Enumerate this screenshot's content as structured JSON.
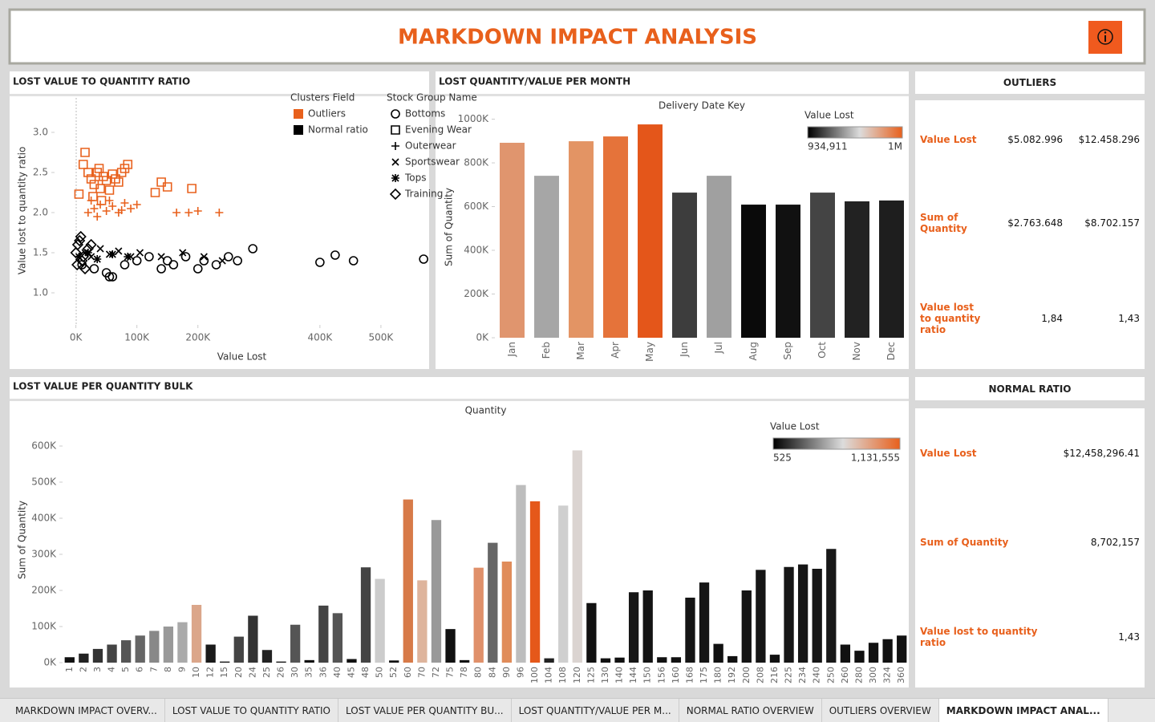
{
  "header": {
    "title": "MARKDOWN IMPACT ANALYSIS"
  },
  "chart_data": [
    {
      "type": "scatter",
      "title": "LOST VALUE TO QUANTITY RATIO",
      "xlabel": "Value Lost",
      "ylabel": "Value lost to quantity ratio",
      "xlim": [
        -35000,
        579000
      ],
      "xticks": [
        {
          "value": 0,
          "label": "0K"
        },
        {
          "value": 100000,
          "label": "100K"
        },
        {
          "value": 200000,
          "label": "200K"
        },
        {
          "value": 400000,
          "label": "400K"
        },
        {
          "value": 500000,
          "label": "500K"
        }
      ],
      "ylim": [
        0.6,
        3.45
      ],
      "yticks": [
        {
          "value": 1,
          "label": "1.0"
        },
        1.5,
        {
          "value": 2,
          "label": "2.0"
        },
        2.5,
        {
          "value": 3,
          "label": "3.0"
        }
      ],
      "cluster_legend": {
        "title": "Clusters Field",
        "items": [
          {
            "name": "Outliers",
            "color": "#e8601c"
          },
          {
            "name": "Normal ratio",
            "color": "#000000"
          }
        ]
      },
      "shape_legend": {
        "title": "Stock Group Name",
        "items": [
          {
            "name": "Bottoms",
            "shape": "circle"
          },
          {
            "name": "Evening Wear",
            "shape": "square"
          },
          {
            "name": "Outerwear",
            "shape": "plus"
          },
          {
            "name": "Sportswear",
            "shape": "cross"
          },
          {
            "name": "Tops",
            "shape": "asterisk"
          },
          {
            "name": "Training",
            "shape": "diamond"
          }
        ]
      },
      "series": [
        {
          "name": "Evening Wear",
          "cluster": "Outliers",
          "x": [
            5000,
            15000,
            20000,
            25000,
            30000,
            35000,
            40000,
            45000,
            50000,
            55000,
            60000,
            70000,
            80000,
            85000,
            12000,
            28000,
            38000,
            65000,
            130000,
            140000,
            150000,
            190000,
            42000,
            75000
          ],
          "y": [
            2.23,
            2.75,
            2.5,
            2.42,
            2.35,
            2.5,
            2.3,
            2.45,
            2.4,
            2.28,
            2.48,
            2.38,
            2.55,
            2.6,
            2.6,
            2.2,
            2.55,
            2.42,
            2.25,
            2.38,
            2.32,
            2.3,
            2.15,
            2.5
          ]
        },
        {
          "name": "Outerwear",
          "cluster": "Outliers",
          "x": [
            20000,
            30000,
            40000,
            50000,
            60000,
            70000,
            80000,
            90000,
            100000,
            35000,
            55000,
            75000,
            165000,
            185000,
            200000,
            235000,
            25000
          ],
          "y": [
            2.0,
            2.05,
            2.1,
            2.02,
            2.08,
            2.0,
            2.12,
            2.05,
            2.1,
            1.95,
            2.15,
            2.03,
            2.0,
            2.0,
            2.02,
            2.0,
            2.15
          ]
        },
        {
          "name": "Bottoms",
          "cluster": "Normal ratio",
          "x": [
            10000,
            30000,
            50000,
            60000,
            80000,
            100000,
            120000,
            140000,
            150000,
            160000,
            180000,
            200000,
            210000,
            230000,
            250000,
            265000,
            290000,
            400000,
            425000,
            455000,
            570000,
            55000
          ],
          "y": [
            1.35,
            1.3,
            1.25,
            1.2,
            1.35,
            1.4,
            1.45,
            1.3,
            1.4,
            1.35,
            1.45,
            1.3,
            1.4,
            1.35,
            1.45,
            1.4,
            1.55,
            1.38,
            1.47,
            1.4,
            1.42,
            1.2
          ]
        },
        {
          "name": "Sportswear",
          "cluster": "Normal ratio",
          "x": [
            15000,
            25000,
            40000,
            55000,
            70000,
            90000,
            105000,
            140000,
            175000,
            210000,
            240000
          ],
          "y": [
            1.5,
            1.45,
            1.55,
            1.48,
            1.52,
            1.45,
            1.5,
            1.45,
            1.5,
            1.45,
            1.4
          ]
        },
        {
          "name": "Tops",
          "cluster": "Normal ratio",
          "x": [
            5000,
            20000,
            35000,
            60000,
            85000
          ],
          "y": [
            1.45,
            1.5,
            1.42,
            1.48,
            1.45
          ]
        },
        {
          "name": "Training",
          "cluster": "Normal ratio",
          "x": [
            0,
            3000,
            6000,
            10000,
            15000,
            20000,
            8000,
            2000,
            25000,
            12000
          ],
          "y": [
            1.5,
            1.6,
            1.65,
            1.4,
            1.3,
            1.55,
            1.7,
            1.35,
            1.6,
            1.45
          ]
        }
      ]
    },
    {
      "type": "bar",
      "title": "LOST QUANTITY/VALUE PER MONTH",
      "xlabel": "Delivery Date Key",
      "ylabel": "Sum of Quantity",
      "categories": [
        "Jan",
        "Feb",
        "Mar",
        "Apr",
        "May",
        "Jun",
        "Jul",
        "Aug",
        "Sep",
        "Oct",
        "Nov",
        "Dec"
      ],
      "values": [
        892000,
        741000,
        899000,
        921000,
        976000,
        664000,
        741000,
        609000,
        609000,
        664000,
        624000,
        628000
      ],
      "colors": [
        "#e0956e",
        "#a6a6a6",
        "#e39464",
        "#e5733a",
        "#e4561a",
        "#3d3d3d",
        "#a0a0a0",
        "#0a0a0a",
        "#111111",
        "#444444",
        "#222222",
        "#1e1e1e"
      ],
      "ylim": [
        0,
        1013000
      ],
      "yticks": [
        {
          "value": 0,
          "label": "0K"
        },
        {
          "value": 200000,
          "label": "200K"
        },
        {
          "value": 400000,
          "label": "400K"
        },
        {
          "value": 600000,
          "label": "600K"
        },
        {
          "value": 800000,
          "label": "800K"
        },
        {
          "value": 1000000,
          "label": "1000K"
        }
      ],
      "legend": {
        "title": "Value Lost",
        "min_label": "934,911",
        "max_label": "1M"
      }
    },
    {
      "type": "bar",
      "title": "LOST VALUE PER QUANTITY BULK",
      "xlabel": "Quantity",
      "ylabel": "Sum of Quantity",
      "categories": [
        "1",
        "2",
        "3",
        "4",
        "5",
        "6",
        "7",
        "8",
        "9",
        "10",
        "12",
        "15",
        "20",
        "24",
        "25",
        "26",
        "30",
        "35",
        "36",
        "40",
        "45",
        "48",
        "50",
        "52",
        "60",
        "70",
        "72",
        "75",
        "78",
        "80",
        "84",
        "90",
        "96",
        "100",
        "104",
        "108",
        "120",
        "125",
        "130",
        "140",
        "144",
        "150",
        "156",
        "160",
        "168",
        "175",
        "180",
        "192",
        "200",
        "208",
        "216",
        "225",
        "234",
        "240",
        "250",
        "260",
        "280",
        "300",
        "324",
        "360"
      ],
      "values": [
        15000,
        25000,
        38000,
        50000,
        62000,
        75000,
        88000,
        100000,
        112000,
        160000,
        50000,
        3000,
        72000,
        130000,
        35000,
        3000,
        105000,
        7000,
        158000,
        137000,
        10000,
        264000,
        232000,
        6000,
        452000,
        228000,
        395000,
        93000,
        7000,
        263000,
        332000,
        280000,
        492000,
        447000,
        12000,
        435000,
        588000,
        165000,
        12000,
        14000,
        195000,
        200000,
        15000,
        15000,
        180000,
        222000,
        52000,
        18000,
        200000,
        257000,
        22000,
        265000,
        272000,
        260000,
        315000,
        50000,
        33000,
        55000,
        65000,
        75000
      ],
      "colors": [
        "#111111",
        "#222222",
        "#333333",
        "#444444",
        "#555555",
        "#666666",
        "#888888",
        "#999999",
        "#aaaaaa",
        "#dba68a",
        "#1a1a1a",
        "#111111",
        "#444444",
        "#333333",
        "#222222",
        "#111111",
        "#555555",
        "#111111",
        "#444444",
        "#555555",
        "#111111",
        "#444444",
        "#cccccc",
        "#111111",
        "#d77a48",
        "#deb49c",
        "#999999",
        "#111111",
        "#111111",
        "#e0906a",
        "#666666",
        "#e08c5a",
        "#bdbdbd",
        "#e5581a",
        "#222222",
        "#cfcfcf",
        "#dbd4d1",
        "#111111",
        "#111111",
        "#111111",
        "#161616",
        "#141414",
        "#111111",
        "#111111",
        "#151515",
        "#161616",
        "#111111",
        "#111111",
        "#141414",
        "#161616",
        "#111111",
        "#161616",
        "#161616",
        "#161616",
        "#181818",
        "#111111",
        "#111111",
        "#111111",
        "#111111",
        "#111111"
      ],
      "ylim": [
        0,
        680000
      ],
      "yticks": [
        {
          "value": 0,
          "label": "0K"
        },
        {
          "value": 100000,
          "label": "100K"
        },
        {
          "value": 200000,
          "label": "200K"
        },
        {
          "value": 300000,
          "label": "300K"
        },
        {
          "value": 400000,
          "label": "400K"
        },
        {
          "value": 500000,
          "label": "500K"
        },
        {
          "value": 600000,
          "label": "600K"
        }
      ],
      "legend": {
        "title": "Value Lost",
        "min_label": "525",
        "max_label": "1,131,555"
      }
    }
  ],
  "outliers": {
    "title": "OUTLIERS",
    "rows": [
      [
        "Value Lost",
        "$5.082.996",
        "$12.458.296"
      ],
      [
        "Sum of Quantity",
        "$2.763.648",
        "$8.702.157"
      ],
      [
        "Value lost to quantity ratio",
        "1,84",
        "1,43"
      ]
    ]
  },
  "normal_ratio": {
    "title": "NORMAL RATIO",
    "rows": [
      [
        "Value Lost",
        "$12,458,296.41"
      ],
      [
        "Sum of Quantity",
        "8,702,157"
      ],
      [
        "Value lost to quantity ratio",
        "1,43"
      ]
    ]
  },
  "tabs": [
    "MARKDOWN IMPACT OVERV...",
    "LOST VALUE TO QUANTITY RATIO",
    "LOST VALUE PER QUANTITY BU...",
    "LOST QUANTITY/VALUE PER M...",
    "NORMAL RATIO OVERVIEW",
    "OUTLIERS OVERVIEW",
    "MARKDOWN IMPACT ANAL..."
  ]
}
